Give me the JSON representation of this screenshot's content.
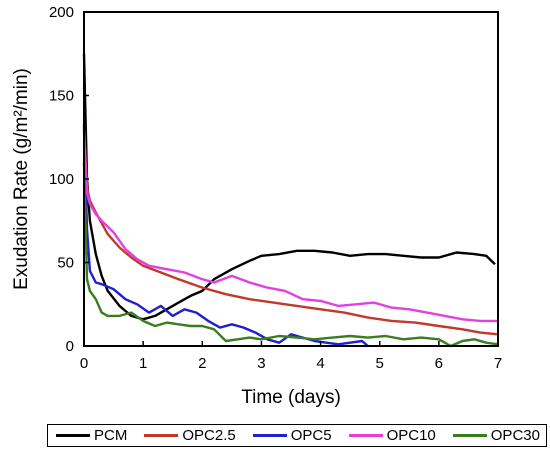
{
  "chart_data": {
    "type": "line",
    "xlabel": "Time (days)",
    "ylabel": "Exudation Rate (g/m²/min)",
    "xlim": [
      0,
      7
    ],
    "ylim": [
      0,
      200
    ],
    "xticks": [
      "0",
      "1",
      "2",
      "3",
      "4",
      "5",
      "6",
      "7"
    ],
    "yticks": [
      "0",
      "50",
      "100",
      "150",
      "200"
    ],
    "grid": false,
    "legend_position": "bottom",
    "series": [
      {
        "name": "PCM",
        "color": "#000000",
        "x": [
          0,
          0.05,
          0.1,
          0.2,
          0.3,
          0.4,
          0.6,
          0.8,
          1.0,
          1.2,
          1.4,
          1.6,
          1.8,
          2.0,
          2.2,
          2.5,
          2.8,
          3.0,
          3.3,
          3.6,
          3.9,
          4.2,
          4.5,
          4.8,
          5.1,
          5.4,
          5.7,
          6.0,
          6.3,
          6.6,
          6.8,
          6.95
        ],
        "y": [
          175,
          100,
          75,
          55,
          42,
          33,
          24,
          18,
          16,
          18,
          22,
          26,
          30,
          33,
          40,
          46,
          51,
          54,
          55,
          57,
          57,
          56,
          54,
          55,
          55,
          54,
          53,
          53,
          56,
          55,
          54,
          49
        ]
      },
      {
        "name": "OPC2.5",
        "color": "#c0392b",
        "x": [
          0,
          0.05,
          0.1,
          0.2,
          0.4,
          0.6,
          0.8,
          1.0,
          1.3,
          1.6,
          2.0,
          2.4,
          2.8,
          3.2,
          3.6,
          4.0,
          4.4,
          4.8,
          5.2,
          5.6,
          6.0,
          6.4,
          6.7,
          7.0
        ],
        "y": [
          130,
          95,
          87,
          80,
          67,
          59,
          53,
          48,
          44,
          40,
          35,
          31,
          28,
          26,
          24,
          22,
          20,
          17,
          15,
          14,
          12,
          10,
          8,
          7
        ]
      },
      {
        "name": "OPC5",
        "color": "#1f1fcf",
        "x": [
          0,
          0.05,
          0.1,
          0.2,
          0.3,
          0.5,
          0.7,
          0.9,
          1.1,
          1.3,
          1.5,
          1.7,
          1.9,
          2.1,
          2.3,
          2.5,
          2.7,
          2.9,
          3.1,
          3.3,
          3.5,
          3.7,
          3.9,
          4.1,
          4.3,
          4.5,
          4.7,
          4.8
        ],
        "y": [
          133,
          70,
          45,
          38,
          37,
          34,
          28,
          25,
          20,
          24,
          18,
          22,
          20,
          15,
          11,
          13,
          11,
          8,
          4,
          2,
          7,
          5,
          3,
          2,
          1,
          2,
          3,
          0
        ]
      },
      {
        "name": "OPC10",
        "color": "#e040e0",
        "x": [
          0,
          0.05,
          0.1,
          0.2,
          0.3,
          0.5,
          0.7,
          0.9,
          1.1,
          1.4,
          1.7,
          2.0,
          2.2,
          2.5,
          2.8,
          3.1,
          3.4,
          3.7,
          4.0,
          4.3,
          4.6,
          4.9,
          5.2,
          5.5,
          5.8,
          6.1,
          6.4,
          6.7,
          7.0
        ],
        "y": [
          128,
          92,
          85,
          79,
          75,
          68,
          58,
          52,
          48,
          46,
          44,
          40,
          38,
          42,
          38,
          35,
          33,
          28,
          27,
          24,
          25,
          26,
          23,
          22,
          20,
          18,
          16,
          15,
          15
        ]
      },
      {
        "name": "OPC30",
        "color": "#3a7d1e",
        "x": [
          0,
          0.05,
          0.1,
          0.2,
          0.3,
          0.4,
          0.6,
          0.8,
          1.0,
          1.2,
          1.4,
          1.6,
          1.8,
          2.0,
          2.2,
          2.4,
          2.6,
          2.8,
          3.0,
          3.3,
          3.6,
          3.9,
          4.2,
          4.5,
          4.8,
          5.1,
          5.4,
          5.7,
          6.0,
          6.2,
          6.4,
          6.6,
          6.8,
          7.0
        ],
        "y": [
          110,
          40,
          33,
          28,
          20,
          18,
          18,
          20,
          15,
          12,
          14,
          13,
          12,
          12,
          10,
          3,
          4,
          5,
          4,
          6,
          5,
          4,
          5,
          6,
          5,
          6,
          4,
          5,
          4,
          0,
          3,
          4,
          2,
          1
        ]
      }
    ]
  }
}
